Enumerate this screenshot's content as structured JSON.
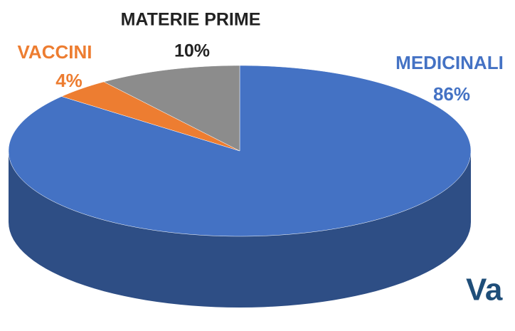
{
  "chart_data": {
    "type": "pie",
    "categories": [
      "MEDICINALI",
      "VACCINI",
      "MATERIE PRIME"
    ],
    "values": [
      86,
      4,
      10
    ],
    "value_labels": [
      "86%",
      "4%",
      "10%"
    ],
    "colors": [
      "#4472c4",
      "#ed7d31",
      "#8c8c8c"
    ],
    "annotation": "Va"
  }
}
